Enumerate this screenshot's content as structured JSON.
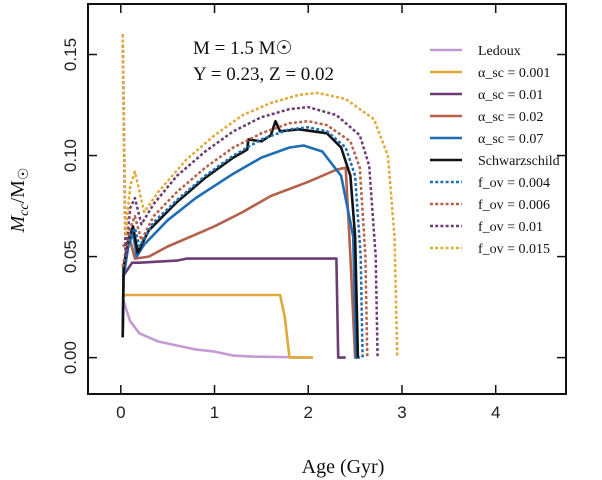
{
  "chart_data": {
    "type": "line",
    "title": "",
    "xlabel": "Age (Gyr)",
    "ylabel": "M_cc / M_sun",
    "xlim": [
      -0.35,
      4.75
    ],
    "ylim": [
      -0.018,
      0.175
    ],
    "xticks": [
      0,
      1,
      2,
      3,
      4
    ],
    "yticks": [
      "0.00",
      "0.05",
      "0.10",
      "0.15"
    ],
    "annotation": {
      "line1": "M = 1.5 M☉",
      "line2": "Y = 0.23, Z = 0.02"
    },
    "series": [
      {
        "name": "Ledoux",
        "color": "#c39bd3",
        "dash": false,
        "points": [
          [
            0.02,
            0.03
          ],
          [
            0.05,
            0.025
          ],
          [
            0.1,
            0.018
          ],
          [
            0.2,
            0.012
          ],
          [
            0.4,
            0.008
          ],
          [
            0.6,
            0.006
          ],
          [
            0.8,
            0.004
          ],
          [
            1.0,
            0.003
          ],
          [
            1.2,
            0.001
          ],
          [
            1.4,
            0.0005
          ],
          [
            2.05,
            0.0
          ]
        ]
      },
      {
        "name": "α_sc = 0.001",
        "color": "#e0a93a",
        "dash": false,
        "points": [
          [
            0.02,
            0.03
          ],
          [
            0.05,
            0.031
          ],
          [
            0.1,
            0.031
          ],
          [
            1.7,
            0.031
          ],
          [
            1.75,
            0.02
          ],
          [
            1.8,
            0.0
          ],
          [
            2.05,
            0.0
          ]
        ]
      },
      {
        "name": "α_sc = 0.01",
        "color": "#6b3d73",
        "dash": false,
        "points": [
          [
            0.02,
            0.04
          ],
          [
            0.12,
            0.047
          ],
          [
            0.2,
            0.047
          ],
          [
            0.6,
            0.048
          ],
          [
            0.7,
            0.049
          ],
          [
            2.3,
            0.049
          ],
          [
            2.32,
            0.0
          ],
          [
            2.4,
            0.0
          ]
        ]
      },
      {
        "name": "α_sc = 0.02",
        "color": "#b5604b",
        "dash": false,
        "points": [
          [
            0.02,
            0.055
          ],
          [
            0.1,
            0.058
          ],
          [
            0.15,
            0.049
          ],
          [
            0.3,
            0.05
          ],
          [
            0.5,
            0.055
          ],
          [
            0.8,
            0.061
          ],
          [
            1.0,
            0.065
          ],
          [
            1.3,
            0.072
          ],
          [
            1.6,
            0.08
          ],
          [
            2.0,
            0.087
          ],
          [
            2.3,
            0.093
          ],
          [
            2.4,
            0.094
          ],
          [
            2.45,
            0.05
          ],
          [
            2.5,
            0.0
          ],
          [
            2.52,
            0.0
          ]
        ]
      },
      {
        "name": "α_sc = 0.07",
        "color": "#1f6db3",
        "dash": false,
        "points": [
          [
            0.02,
            0.01
          ],
          [
            0.03,
            0.04
          ],
          [
            0.08,
            0.055
          ],
          [
            0.13,
            0.062
          ],
          [
            0.17,
            0.05
          ],
          [
            0.25,
            0.056
          ],
          [
            0.5,
            0.068
          ],
          [
            0.8,
            0.079
          ],
          [
            1.2,
            0.091
          ],
          [
            1.5,
            0.099
          ],
          [
            1.8,
            0.104
          ],
          [
            1.95,
            0.105
          ],
          [
            2.15,
            0.102
          ],
          [
            2.35,
            0.09
          ],
          [
            2.48,
            0.06
          ],
          [
            2.5,
            0.02
          ],
          [
            2.51,
            0.0
          ],
          [
            2.55,
            0.0
          ]
        ]
      },
      {
        "name": "Schwarzschild",
        "color": "#111111",
        "dash": false,
        "points": [
          [
            0.02,
            0.01
          ],
          [
            0.03,
            0.045
          ],
          [
            0.08,
            0.058
          ],
          [
            0.13,
            0.065
          ],
          [
            0.18,
            0.052
          ],
          [
            0.3,
            0.063
          ],
          [
            0.6,
            0.077
          ],
          [
            0.9,
            0.089
          ],
          [
            1.2,
            0.099
          ],
          [
            1.35,
            0.103
          ],
          [
            1.36,
            0.108
          ],
          [
            1.5,
            0.107
          ],
          [
            1.6,
            0.11
          ],
          [
            1.65,
            0.117
          ],
          [
            1.7,
            0.112
          ],
          [
            1.9,
            0.113
          ],
          [
            2.2,
            0.111
          ],
          [
            2.35,
            0.104
          ],
          [
            2.45,
            0.09
          ],
          [
            2.5,
            0.06
          ],
          [
            2.52,
            0.02
          ],
          [
            2.53,
            0.0
          ]
        ]
      },
      {
        "name": "f_ov = 0.004",
        "color": "#1f6db3",
        "dash": true,
        "points": [
          [
            0.02,
            0.045
          ],
          [
            0.1,
            0.06
          ],
          [
            0.15,
            0.064
          ],
          [
            0.2,
            0.055
          ],
          [
            0.35,
            0.067
          ],
          [
            0.6,
            0.078
          ],
          [
            0.9,
            0.09
          ],
          [
            1.2,
            0.1
          ],
          [
            1.5,
            0.108
          ],
          [
            1.8,
            0.113
          ],
          [
            2.0,
            0.114
          ],
          [
            2.2,
            0.112
          ],
          [
            2.4,
            0.104
          ],
          [
            2.5,
            0.09
          ],
          [
            2.56,
            0.05
          ],
          [
            2.58,
            0.0
          ]
        ]
      },
      {
        "name": "f_ov = 0.006",
        "color": "#b5604b",
        "dash": true,
        "points": [
          [
            0.02,
            0.045
          ],
          [
            0.1,
            0.064
          ],
          [
            0.15,
            0.07
          ],
          [
            0.22,
            0.058
          ],
          [
            0.35,
            0.07
          ],
          [
            0.6,
            0.082
          ],
          [
            0.9,
            0.094
          ],
          [
            1.2,
            0.104
          ],
          [
            1.5,
            0.111
          ],
          [
            1.8,
            0.116
          ],
          [
            2.0,
            0.117
          ],
          [
            2.2,
            0.115
          ],
          [
            2.45,
            0.107
          ],
          [
            2.55,
            0.094
          ],
          [
            2.61,
            0.05
          ],
          [
            2.63,
            0.0
          ]
        ]
      },
      {
        "name": "f_ov = 0.01",
        "color": "#6b3d73",
        "dash": true,
        "points": [
          [
            0.02,
            0.16
          ],
          [
            0.05,
            0.05
          ],
          [
            0.1,
            0.074
          ],
          [
            0.15,
            0.079
          ],
          [
            0.22,
            0.066
          ],
          [
            0.35,
            0.076
          ],
          [
            0.6,
            0.09
          ],
          [
            0.9,
            0.102
          ],
          [
            1.2,
            0.112
          ],
          [
            1.5,
            0.119
          ],
          [
            1.8,
            0.123
          ],
          [
            2.0,
            0.124
          ],
          [
            2.3,
            0.12
          ],
          [
            2.55,
            0.11
          ],
          [
            2.65,
            0.095
          ],
          [
            2.72,
            0.05
          ],
          [
            2.74,
            0.0
          ]
        ]
      },
      {
        "name": "f_ov = 0.015",
        "color": "#e0a93a",
        "dash": true,
        "points": [
          [
            0.02,
            0.16
          ],
          [
            0.05,
            0.06
          ],
          [
            0.1,
            0.085
          ],
          [
            0.15,
            0.092
          ],
          [
            0.25,
            0.072
          ],
          [
            0.4,
            0.082
          ],
          [
            0.7,
            0.098
          ],
          [
            1.0,
            0.11
          ],
          [
            1.3,
            0.12
          ],
          [
            1.6,
            0.126
          ],
          [
            1.9,
            0.13
          ],
          [
            2.1,
            0.131
          ],
          [
            2.4,
            0.128
          ],
          [
            2.7,
            0.118
          ],
          [
            2.85,
            0.1
          ],
          [
            2.92,
            0.06
          ],
          [
            2.95,
            0.0
          ]
        ]
      }
    ]
  }
}
